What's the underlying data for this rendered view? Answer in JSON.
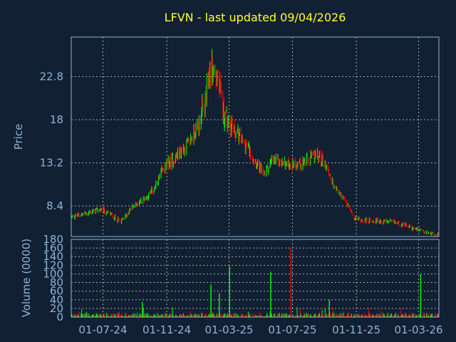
{
  "chart_data": [
    {
      "type": "candlestick",
      "title": "LFVN - last updated 09/04/2026",
      "ylabel": "Price",
      "ylim": [
        5.0,
        27.2
      ],
      "yticks": [
        "22.8",
        "18",
        "13.2",
        "8.4"
      ],
      "ytick_values": [
        22.8,
        18,
        13.2,
        8.4
      ],
      "x_date_range": [
        "2024-05-01",
        "2026-04-09"
      ],
      "xtick_labels": [
        "01-07-24",
        "01-11-24",
        "01-03-25",
        "01-07-25",
        "01-11-25",
        "01-03-26"
      ],
      "xtick_dates": [
        "2024-07-01",
        "2024-11-01",
        "2025-03-01",
        "2025-07-01",
        "2025-11-01",
        "2026-03-01"
      ],
      "price_path": [
        {
          "date": "2024-05-01",
          "close": 7.2
        },
        {
          "date": "2024-06-01",
          "close": 7.6
        },
        {
          "date": "2024-06-25",
          "close": 8.0
        },
        {
          "date": "2024-07-15",
          "close": 7.5
        },
        {
          "date": "2024-08-05",
          "close": 6.6
        },
        {
          "date": "2024-08-25",
          "close": 8.2
        },
        {
          "date": "2024-09-25",
          "close": 9.5
        },
        {
          "date": "2024-10-10",
          "close": 10.5
        },
        {
          "date": "2024-10-25",
          "close": 12.5
        },
        {
          "date": "2024-11-20",
          "close": 14.0
        },
        {
          "date": "2024-12-15",
          "close": 15.5
        },
        {
          "date": "2025-01-01",
          "close": 17.5
        },
        {
          "date": "2025-01-15",
          "close": 20.0
        },
        {
          "date": "2025-01-25",
          "close": 24.0
        },
        {
          "date": "2025-02-05",
          "close": 22.8
        },
        {
          "date": "2025-02-20",
          "close": 18.5
        },
        {
          "date": "2025-03-15",
          "close": 16.5
        },
        {
          "date": "2025-04-05",
          "close": 15.0
        },
        {
          "date": "2025-04-20",
          "close": 13.5
        },
        {
          "date": "2025-05-05",
          "close": 12.0
        },
        {
          "date": "2025-05-25",
          "close": 13.5
        },
        {
          "date": "2025-06-20",
          "close": 13.0
        },
        {
          "date": "2025-07-20",
          "close": 13.2
        },
        {
          "date": "2025-08-15",
          "close": 14.0
        },
        {
          "date": "2025-08-30",
          "close": 13.5
        },
        {
          "date": "2025-09-20",
          "close": 10.5
        },
        {
          "date": "2025-10-10",
          "close": 9.0
        },
        {
          "date": "2025-10-28",
          "close": 7.0
        },
        {
          "date": "2025-11-20",
          "close": 6.8
        },
        {
          "date": "2025-12-20",
          "close": 6.7
        },
        {
          "date": "2026-01-15",
          "close": 6.6
        },
        {
          "date": "2026-02-15",
          "close": 6.0
        },
        {
          "date": "2026-03-10",
          "close": 5.5
        },
        {
          "date": "2026-04-09",
          "close": 5.2
        }
      ],
      "up_color": "#00ff00",
      "down_color": "#ff0000",
      "grid": true
    },
    {
      "type": "bar",
      "ylabel": "Volume (0000)",
      "ylim": [
        0,
        180
      ],
      "yticks": [
        "180",
        "160",
        "140",
        "120",
        "100",
        "80",
        "60",
        "40",
        "20",
        "0"
      ],
      "ytick_values": [
        180,
        160,
        140,
        120,
        100,
        80,
        60,
        40,
        20,
        0
      ],
      "typical_volume": 10,
      "spikes": [
        {
          "date": "2024-09-15",
          "value": 35
        },
        {
          "date": "2025-01-25",
          "value": 75
        },
        {
          "date": "2025-02-10",
          "value": 55
        },
        {
          "date": "2025-03-02",
          "value": 118
        },
        {
          "date": "2025-05-20",
          "value": 105
        },
        {
          "date": "2025-06-28",
          "value": 160
        },
        {
          "date": "2025-09-10",
          "value": 40
        },
        {
          "date": "2026-03-05",
          "value": 100
        }
      ],
      "grid": true
    }
  ]
}
